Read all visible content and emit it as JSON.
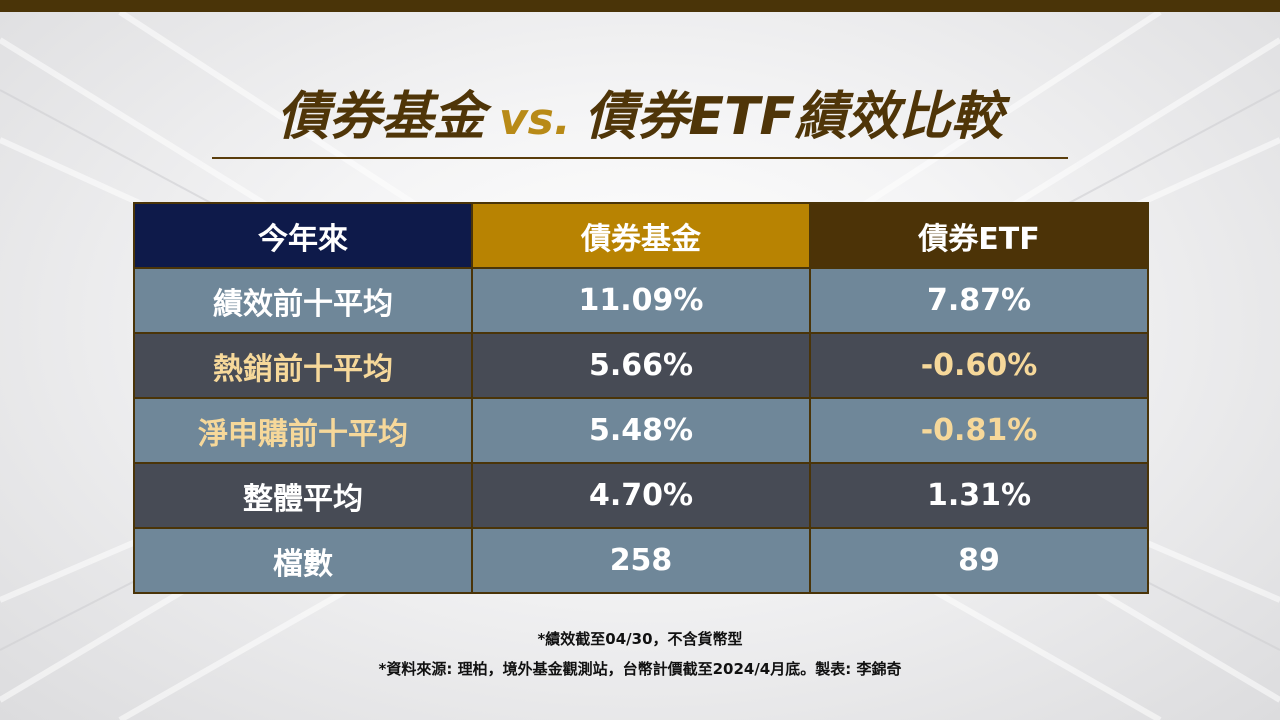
{
  "title": {
    "part1": "債券基金",
    "vs": "vs.",
    "part2": "債券ETF績效比較"
  },
  "table": {
    "headers": [
      "今年來",
      "債券基金",
      "債券ETF"
    ],
    "rows": [
      {
        "label": "績效前十平均",
        "fund": "11.09%",
        "etf": "7.87%"
      },
      {
        "label": "熱銷前十平均",
        "fund": "5.66%",
        "etf": "-0.60%"
      },
      {
        "label": "淨申購前十平均",
        "fund": "5.48%",
        "etf": "-0.81%"
      },
      {
        "label": "整體平均",
        "fund": "4.70%",
        "etf": "1.31%"
      },
      {
        "label": "檔數",
        "fund": "258",
        "etf": "89"
      }
    ]
  },
  "notes": [
    "*績效截至04/30，不含貨幣型",
    "*資料來源: 理柏，境外基金觀測站，台幣計價截至2024/4月底。製表: 李錦奇"
  ],
  "colors": {
    "header_period": "#0e1a4a",
    "header_fund": "#b88302",
    "header_etf": "#4c3307",
    "row_light": "#6f8799",
    "row_dark": "#474b55",
    "highlight_text": "#f6d89a"
  }
}
